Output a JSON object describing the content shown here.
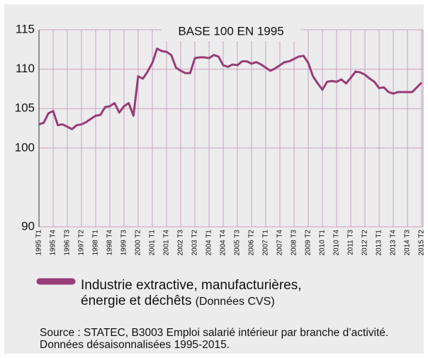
{
  "chart_data": {
    "type": "line",
    "title": "BASE 100 EN 1995",
    "categories": [
      "1995 T1",
      null,
      null,
      "1995 T4",
      null,
      null,
      "1996 T3",
      null,
      null,
      "1997 T2",
      null,
      null,
      "1998 T1",
      null,
      null,
      "1998 T4",
      null,
      null,
      "1999 T3",
      null,
      null,
      "2000 T2",
      null,
      null,
      "2001 T1",
      null,
      null,
      "2001 T4",
      null,
      null,
      "2002 T3",
      null,
      null,
      "2003 T2",
      null,
      null,
      "2004 T1",
      null,
      null,
      "2004 T4",
      null,
      null,
      "2005 T3",
      null,
      null,
      "2006 T2",
      null,
      null,
      "2007 T1",
      null,
      null,
      "2007 T4",
      null,
      null,
      "2008 T3",
      null,
      null,
      "2009 T2",
      null,
      null,
      "2010 T1",
      null,
      null,
      "2010 T4",
      null,
      null,
      "2011 T3",
      null,
      null,
      "2012 T2",
      null,
      null,
      "2013 T1",
      null,
      null,
      "2013 T4",
      null,
      null,
      "2014 T3",
      null,
      null,
      "2015 T2"
    ],
    "series": [
      {
        "name": "Industrie extractive, manufacturières, énergie et déchêts",
        "color": "#983c78",
        "values": [
          103.0,
          103.2,
          104.4,
          104.7,
          102.9,
          103.0,
          102.7,
          102.4,
          102.9,
          103.0,
          103.3,
          103.7,
          104.1,
          104.2,
          105.2,
          105.3,
          105.7,
          104.5,
          105.3,
          105.7,
          104.1,
          109.1,
          108.8,
          109.7,
          110.8,
          112.6,
          112.3,
          112.2,
          111.8,
          110.2,
          109.8,
          109.5,
          109.5,
          111.4,
          111.5,
          111.5,
          111.4,
          111.8,
          111.6,
          110.5,
          110.3,
          110.6,
          110.5,
          111.0,
          111.0,
          110.7,
          110.9,
          110.6,
          110.2,
          109.8,
          110.1,
          110.5,
          110.9,
          111.0,
          111.3,
          111.6,
          111.7,
          110.8,
          109.1,
          108.2,
          107.4,
          108.4,
          108.5,
          108.4,
          108.7,
          108.2,
          108.9,
          109.7,
          109.6,
          109.3,
          108.8,
          108.4,
          107.6,
          107.7,
          107.1,
          106.9,
          107.1,
          107.1,
          107.1,
          107.1,
          107.7,
          108.3
        ]
      }
    ],
    "series_note": "(Données CVS)",
    "source": "Source : STATEC, B3003 Emploi salarié intérieur par branche d’activité. Données désaisonnalisées 1995-2015.",
    "ylim": [
      90,
      115
    ],
    "yticks": [
      90,
      100,
      105,
      110,
      115
    ],
    "grid": true,
    "grid_color": "#c9a2c2"
  }
}
